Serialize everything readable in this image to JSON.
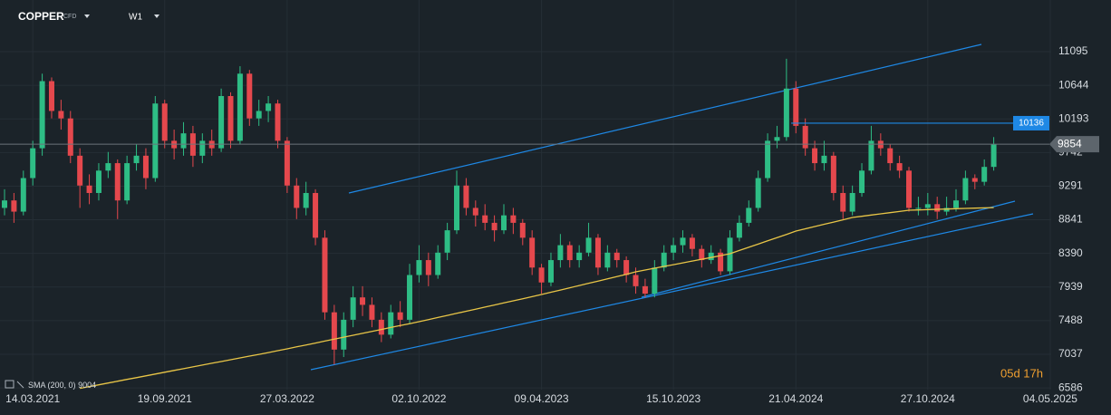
{
  "chart_data": {
    "type": "candlestick",
    "symbol": "COPPER",
    "instrument_type": "CFD",
    "timeframe": "W1",
    "up_color": "#2ebd85",
    "down_color": "#e5484d",
    "ylim": [
      6563,
      11788
    ],
    "yticks": [
      11095,
      10644,
      10193,
      9742,
      9291,
      8841,
      8390,
      7939,
      7488,
      7037,
      6586
    ],
    "grid": true,
    "categories": [
      null,
      null,
      null,
      "14.03.2021",
      null,
      null,
      null,
      null,
      null,
      null,
      null,
      null,
      null,
      null,
      null,
      null,
      null,
      "19.09.2021",
      null,
      null,
      null,
      null,
      null,
      null,
      null,
      null,
      null,
      null,
      null,
      null,
      "27.03.2022",
      null,
      null,
      null,
      null,
      null,
      null,
      null,
      null,
      null,
      null,
      null,
      null,
      null,
      "02.10.2022",
      null,
      null,
      null,
      null,
      null,
      null,
      null,
      null,
      null,
      null,
      null,
      null,
      "09.04.2023",
      null,
      null,
      null,
      null,
      null,
      null,
      null,
      null,
      null,
      null,
      null,
      null,
      null,
      "15.10.2023",
      null,
      null,
      null,
      null,
      null,
      null,
      null,
      null,
      null,
      null,
      null,
      null,
      "21.04.2024",
      null,
      null,
      null,
      null,
      null,
      null,
      null,
      null,
      null,
      null,
      null,
      null,
      null,
      "27.10.2024",
      null,
      null,
      null,
      null,
      null,
      null,
      null,
      null,
      null,
      null,
      null,
      null,
      "04.05.2025"
    ],
    "ohlc": [
      [
        9000,
        9250,
        8900,
        9100
      ],
      [
        9100,
        9200,
        8800,
        8950
      ],
      [
        8950,
        9500,
        8900,
        9400
      ],
      [
        9400,
        9900,
        9300,
        9800
      ],
      [
        9800,
        10800,
        9700,
        10700
      ],
      [
        10700,
        10750,
        10200,
        10300
      ],
      [
        10300,
        10450,
        10050,
        10200
      ],
      [
        10200,
        10300,
        9600,
        9700
      ],
      [
        9700,
        9800,
        9000,
        9300
      ],
      [
        9300,
        9450,
        9050,
        9200
      ],
      [
        9200,
        9600,
        9100,
        9500
      ],
      [
        9500,
        9750,
        9400,
        9600
      ],
      [
        9600,
        9650,
        8850,
        9100
      ],
      [
        9100,
        9700,
        9050,
        9600
      ],
      [
        9600,
        9850,
        9500,
        9700
      ],
      [
        9700,
        9800,
        9250,
        9400
      ],
      [
        9400,
        10500,
        9350,
        10400
      ],
      [
        10400,
        10450,
        9800,
        9900
      ],
      [
        9900,
        10050,
        9650,
        9800
      ],
      [
        9800,
        10150,
        9700,
        10000
      ],
      [
        10000,
        10100,
        9550,
        9700
      ],
      [
        9700,
        10000,
        9600,
        9900
      ],
      [
        9900,
        10050,
        9700,
        9800
      ],
      [
        9800,
        10600,
        9750,
        10500
      ],
      [
        10500,
        10550,
        9800,
        9900
      ],
      [
        9900,
        10900,
        9850,
        10800
      ],
      [
        10800,
        10850,
        10100,
        10200
      ],
      [
        10200,
        10450,
        10100,
        10300
      ],
      [
        10300,
        10500,
        10150,
        10400
      ],
      [
        10400,
        10450,
        9800,
        9900
      ],
      [
        9900,
        9950,
        9200,
        9300
      ],
      [
        9300,
        9400,
        8850,
        9000
      ],
      [
        9000,
        9350,
        8900,
        9200
      ],
      [
        9200,
        9250,
        8500,
        8600
      ],
      [
        8600,
        8700,
        7500,
        7600
      ],
      [
        7600,
        7700,
        6900,
        7100
      ],
      [
        7100,
        7600,
        7000,
        7500
      ],
      [
        7500,
        7950,
        7400,
        7800
      ],
      [
        7800,
        7950,
        7550,
        7700
      ],
      [
        7700,
        7800,
        7400,
        7500
      ],
      [
        7500,
        7600,
        7200,
        7300
      ],
      [
        7300,
        7700,
        7250,
        7600
      ],
      [
        7600,
        7750,
        7400,
        7500
      ],
      [
        7500,
        8250,
        7450,
        8100
      ],
      [
        8100,
        8500,
        8000,
        8300
      ],
      [
        8300,
        8400,
        7950,
        8100
      ],
      [
        8100,
        8500,
        8050,
        8400
      ],
      [
        8400,
        8800,
        8300,
        8700
      ],
      [
        8700,
        9500,
        8650,
        9300
      ],
      [
        9300,
        9400,
        8900,
        9000
      ],
      [
        9000,
        9100,
        8750,
        8900
      ],
      [
        8900,
        9050,
        8700,
        8800
      ],
      [
        8800,
        8900,
        8550,
        8700
      ],
      [
        8700,
        9050,
        8650,
        8900
      ],
      [
        8900,
        9000,
        8650,
        8800
      ],
      [
        8800,
        8850,
        8500,
        8600
      ],
      [
        8600,
        8700,
        8100,
        8200
      ],
      [
        8200,
        8250,
        7850,
        8000
      ],
      [
        8000,
        8400,
        7950,
        8300
      ],
      [
        8300,
        8650,
        8200,
        8500
      ],
      [
        8500,
        8550,
        8200,
        8300
      ],
      [
        8300,
        8500,
        8200,
        8400
      ],
      [
        8400,
        8800,
        8350,
        8600
      ],
      [
        8600,
        8650,
        8100,
        8200
      ],
      [
        8200,
        8500,
        8150,
        8400
      ],
      [
        8400,
        8450,
        8200,
        8300
      ],
      [
        8300,
        8350,
        8000,
        8100
      ],
      [
        8100,
        8200,
        7850,
        7950
      ],
      [
        7950,
        8050,
        7800,
        7850
      ],
      [
        7850,
        8300,
        7800,
        8200
      ],
      [
        8200,
        8500,
        8150,
        8400
      ],
      [
        8400,
        8600,
        8300,
        8500
      ],
      [
        8500,
        8700,
        8400,
        8600
      ],
      [
        8600,
        8650,
        8350,
        8450
      ],
      [
        8450,
        8500,
        8200,
        8300
      ],
      [
        8300,
        8500,
        8250,
        8400
      ],
      [
        8400,
        8450,
        8100,
        8150
      ],
      [
        8150,
        8700,
        8100,
        8600
      ],
      [
        8600,
        8900,
        8550,
        8800
      ],
      [
        8800,
        9100,
        8750,
        9000
      ],
      [
        9000,
        9500,
        8950,
        9400
      ],
      [
        9400,
        10000,
        9350,
        9900
      ],
      [
        9900,
        10100,
        9800,
        9950
      ],
      [
        9950,
        11000,
        9900,
        10600
      ],
      [
        10600,
        10700,
        10000,
        10100
      ],
      [
        10100,
        10200,
        9700,
        9800
      ],
      [
        9800,
        9900,
        9500,
        9600
      ],
      [
        9600,
        9900,
        9500,
        9700
      ],
      [
        9700,
        9750,
        9100,
        9200
      ],
      [
        9200,
        9300,
        8850,
        8950
      ],
      [
        8950,
        9300,
        8900,
        9200
      ],
      [
        9200,
        9600,
        9150,
        9500
      ],
      [
        9500,
        10100,
        9450,
        9900
      ],
      [
        9900,
        10000,
        9700,
        9800
      ],
      [
        9800,
        9850,
        9500,
        9600
      ],
      [
        9600,
        9700,
        9400,
        9500
      ],
      [
        9500,
        9550,
        8950,
        9000
      ],
      [
        9000,
        9150,
        8900,
        9000
      ],
      [
        9000,
        9200,
        8900,
        9050
      ],
      [
        9050,
        9150,
        8850,
        8950
      ],
      [
        8950,
        9150,
        8900,
        9000
      ],
      [
        9000,
        9250,
        8950,
        9100
      ],
      [
        9100,
        9500,
        9050,
        9400
      ],
      [
        9400,
        9450,
        9250,
        9350
      ],
      [
        9350,
        9650,
        9300,
        9550
      ],
      [
        9550,
        9950,
        9500,
        9854
      ],
      null,
      null,
      null,
      null,
      null,
      null
    ],
    "sma": {
      "name": "SMA",
      "params": "(200, 0)",
      "color": "#e8c547",
      "values": [
        null,
        null,
        null,
        null,
        null,
        null,
        null,
        null,
        6580,
        6604,
        6628,
        6652,
        6676,
        6700,
        6724,
        6748,
        6772,
        6796,
        6820,
        6844,
        6868,
        6892,
        6916,
        6940,
        6964,
        6988,
        7012,
        7036,
        7060,
        7085,
        7110,
        7136,
        7162,
        7188,
        7214,
        7240,
        7266,
        7292,
        7318,
        7344,
        7370,
        7396,
        7422,
        7448,
        7474,
        7502,
        7530,
        7558,
        7586,
        7614,
        7642,
        7670,
        7698,
        7726,
        7754,
        7782,
        7810,
        7839,
        7869,
        7899,
        7929,
        7959,
        7989,
        8019,
        8049,
        8079,
        8109,
        8143,
        8167,
        8191,
        8215,
        8239,
        8263,
        8287,
        8311,
        8335,
        8360,
        8386,
        8429,
        8472,
        8515,
        8558,
        8601,
        8644,
        8690,
        8720,
        8750,
        8780,
        8810,
        8840,
        8872,
        8888,
        8904,
        8920,
        8936,
        8952,
        8969,
        8973,
        8977,
        8981,
        8985,
        8989,
        8993,
        8997,
        9001,
        9004,
        null,
        null,
        null,
        null,
        null,
        null
      ]
    },
    "level": 10136,
    "level_color": "#1e88e5",
    "countdown": "05d 17h"
  }
}
